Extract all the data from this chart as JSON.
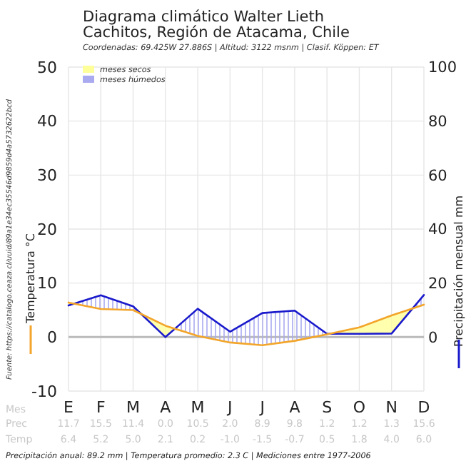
{
  "chart_data": {
    "type": "line",
    "title": "Diagrama climático Walter Lieth\nCachitos, Región de Atacama, Chile",
    "subtitle": "Coordenadas: 69.425W 27.886S | Altitud: 3122 msnm | Clasif. Köppen: ET",
    "ylabel": "Temperatura °C",
    "y2label": "Precipitación mensual mm",
    "categories": [
      "E",
      "F",
      "M",
      "A",
      "M",
      "J",
      "J",
      "A",
      "S",
      "O",
      "N",
      "D"
    ],
    "series": [
      {
        "color": "#1a1acc",
        "axis": "y2",
        "values": [
          11.7,
          15.5,
          11.4,
          0.0,
          10.5,
          2.0,
          8.9,
          9.8,
          1.2,
          1.2,
          1.3,
          15.6
        ],
        "value_labels": [
          "11.7",
          "15.5",
          "11.4",
          "0.0",
          "10.5",
          "2.0",
          "8.9",
          "9.8",
          "1.2",
          "1.2",
          "1.3",
          "15.6"
        ]
      },
      {
        "color": "#f2a52a",
        "values": [
          6.4,
          5.2,
          5.0,
          2.1,
          0.2,
          -1.0,
          -1.5,
          -0.7,
          0.5,
          1.8,
          4.0,
          6.0
        ],
        "value_labels": [
          "6.4",
          "5.2",
          "5.0",
          "2.1",
          "0.2",
          "-1.0",
          "-1.5",
          "-0.7",
          "0.5",
          "1.8",
          "4.0",
          "6.0"
        ]
      }
    ],
    "ylim": [
      -10,
      50
    ],
    "yticks": [
      -10,
      0,
      10,
      20,
      30,
      40,
      50
    ],
    "y2lim": [
      -20,
      100
    ],
    "y2ticks": [
      0,
      20,
      40,
      60,
      80,
      100
    ],
    "grid": true,
    "marker": "none",
    "line_style": "solid",
    "ref_lines": [
      {
        "axis": "y",
        "value": 0,
        "color": "#bbbbbb"
      }
    ],
    "annotations": [
      "meses secos",
      "meses húmedos",
      "Precipitación anual: 89.2 mm | Temperatura promedio: 2.3 C | Mediciones entre 1977-2006",
      "Fuente: https://catalogo.ceaza.cl/uuid/89a1e34ec35546d9859d4a5732622bcd",
      "Mes",
      "Prec",
      "Temp"
    ]
  }
}
